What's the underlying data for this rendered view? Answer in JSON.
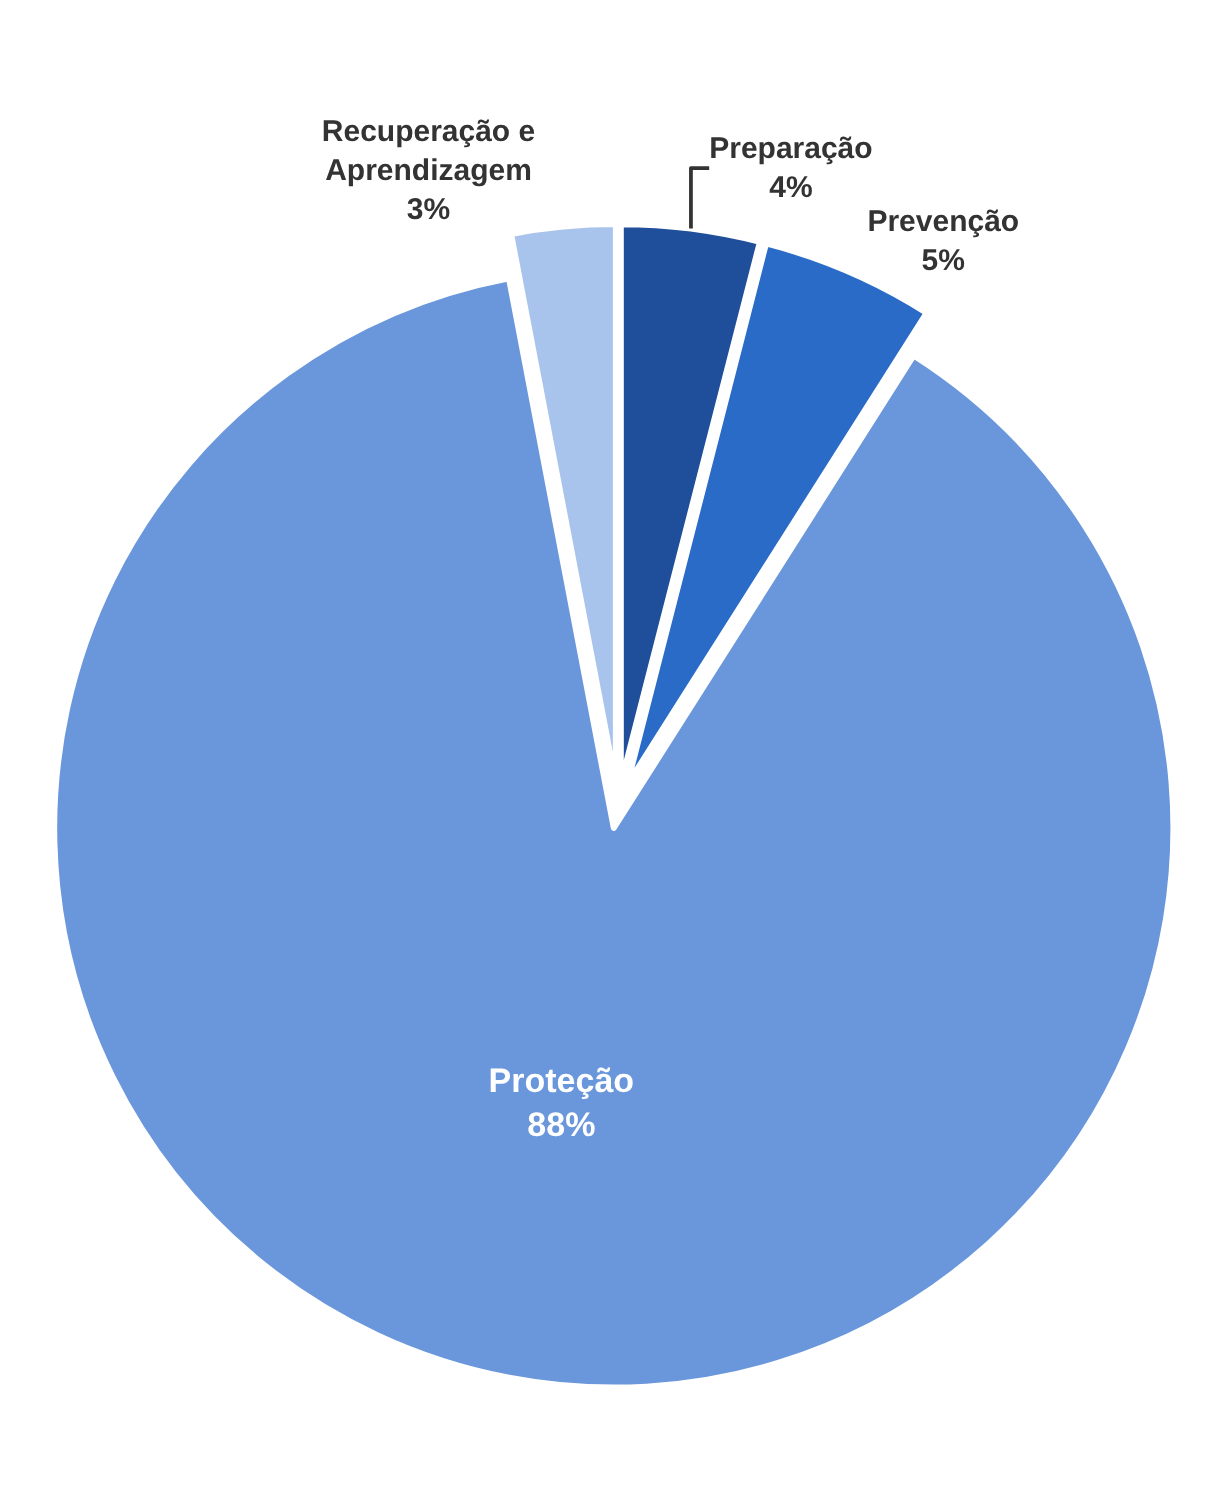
{
  "chart_data": {
    "type": "pie",
    "categories": [
      "Preparação",
      "Prevenção",
      "Proteção",
      "Recuperação e Aprendizagem"
    ],
    "values": [
      4,
      5,
      88,
      3
    ],
    "colors": [
      "#1f4e9a",
      "#2a6bc7",
      "#6a97db",
      "#a9c4ec"
    ],
    "value_labels": [
      "4%",
      "5%",
      "88%",
      "3%"
    ]
  }
}
